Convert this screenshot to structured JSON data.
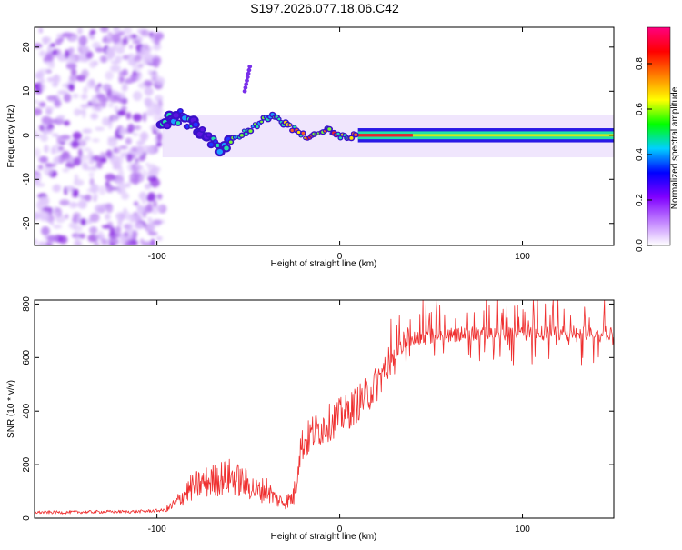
{
  "title": "S197.2026.077.18.06.C42",
  "chart_data": [
    {
      "type": "heatmap",
      "xlabel": "Height of straight line (km)",
      "ylabel": "Frequency (Hz)",
      "xlim": [
        -167,
        150
      ],
      "ylim": [
        -25,
        24.5
      ],
      "xticks": [
        -100,
        0,
        100
      ],
      "yticks": [
        -20,
        -10,
        0,
        10,
        20
      ],
      "xtick_labels": [
        "-100",
        "0",
        "100"
      ],
      "ytick_labels": [
        "-20",
        "-10",
        "0",
        "10",
        "20"
      ],
      "ridge": [
        {
          "x": -100,
          "f": 3
        },
        {
          "x": -95,
          "f": 4
        },
        {
          "x": -90,
          "f": 4.5
        },
        {
          "x": -85,
          "f": 3.5
        },
        {
          "x": -80,
          "f": 3
        },
        {
          "x": -75,
          "f": 1
        },
        {
          "x": -70,
          "f": -1
        },
        {
          "x": -65,
          "f": -2
        },
        {
          "x": -60,
          "f": -1.5
        },
        {
          "x": -55,
          "f": 0
        },
        {
          "x": -50,
          "f": 1
        },
        {
          "x": -45,
          "f": 2.5
        },
        {
          "x": -40,
          "f": 4
        },
        {
          "x": -37,
          "f": 4.8
        },
        {
          "x": -33,
          "f": 4
        },
        {
          "x": -30,
          "f": 2.5
        },
        {
          "x": -25,
          "f": 1.5
        },
        {
          "x": -20,
          "f": 0
        },
        {
          "x": -15,
          "f": -0.5
        },
        {
          "x": -10,
          "f": 0.5
        },
        {
          "x": -7,
          "f": 1.5
        },
        {
          "x": -3,
          "f": 0.5
        },
        {
          "x": 2,
          "f": -0.5
        },
        {
          "x": 6,
          "f": -0.3
        },
        {
          "x": 10,
          "f": 0
        },
        {
          "x": 150,
          "f": 0
        }
      ]
    },
    {
      "type": "colorbar",
      "label": "Normalized spectral amplitude",
      "range": [
        0,
        0.96
      ],
      "ticks": [
        0,
        0.2,
        0.4,
        0.6,
        0.8
      ],
      "tick_labels": [
        "0.0",
        "0.2",
        "0.4",
        "0.6",
        "0.8"
      ],
      "colors": [
        "#ffffff",
        "#c080ff",
        "#8000ff",
        "#0000ff",
        "#00d0ff",
        "#00ff00",
        "#ffff00",
        "#ff8000",
        "#ff0000",
        "#ff0080"
      ]
    },
    {
      "type": "line",
      "xlabel": "Height of straight line (km)",
      "ylabel": "SNR (10 * v/v)",
      "xlim": [
        -167,
        150
      ],
      "ylim": [
        0,
        815
      ],
      "xticks": [
        -100,
        0,
        100
      ],
      "yticks": [
        0,
        200,
        400,
        600,
        800
      ],
      "xtick_labels": [
        "-100",
        "0",
        "100"
      ],
      "ytick_labels": [
        "0",
        "200",
        "400",
        "600",
        "800"
      ],
      "series": [
        {
          "name": "SNR",
          "color": "#ef3030",
          "x": [
            -167,
            -150,
            -130,
            -110,
            -95,
            -90,
            -85,
            -80,
            -75,
            -70,
            -65,
            -60,
            -55,
            -50,
            -45,
            -40,
            -35,
            -30,
            -25,
            -22,
            -20,
            -18,
            -15,
            -10,
            -5,
            0,
            5,
            10,
            15,
            20,
            25,
            30,
            35,
            40,
            50,
            60,
            70,
            80,
            90,
            100,
            110,
            120,
            130,
            140,
            150
          ],
          "values": [
            22,
            22,
            24,
            25,
            30,
            55,
            90,
            120,
            130,
            140,
            150,
            155,
            140,
            125,
            100,
            110,
            70,
            60,
            80,
            250,
            280,
            290,
            320,
            340,
            360,
            380,
            400,
            430,
            460,
            500,
            560,
            610,
            650,
            670,
            680,
            685,
            690,
            690,
            690,
            690,
            690,
            690,
            690,
            690,
            690
          ]
        }
      ]
    }
  ]
}
